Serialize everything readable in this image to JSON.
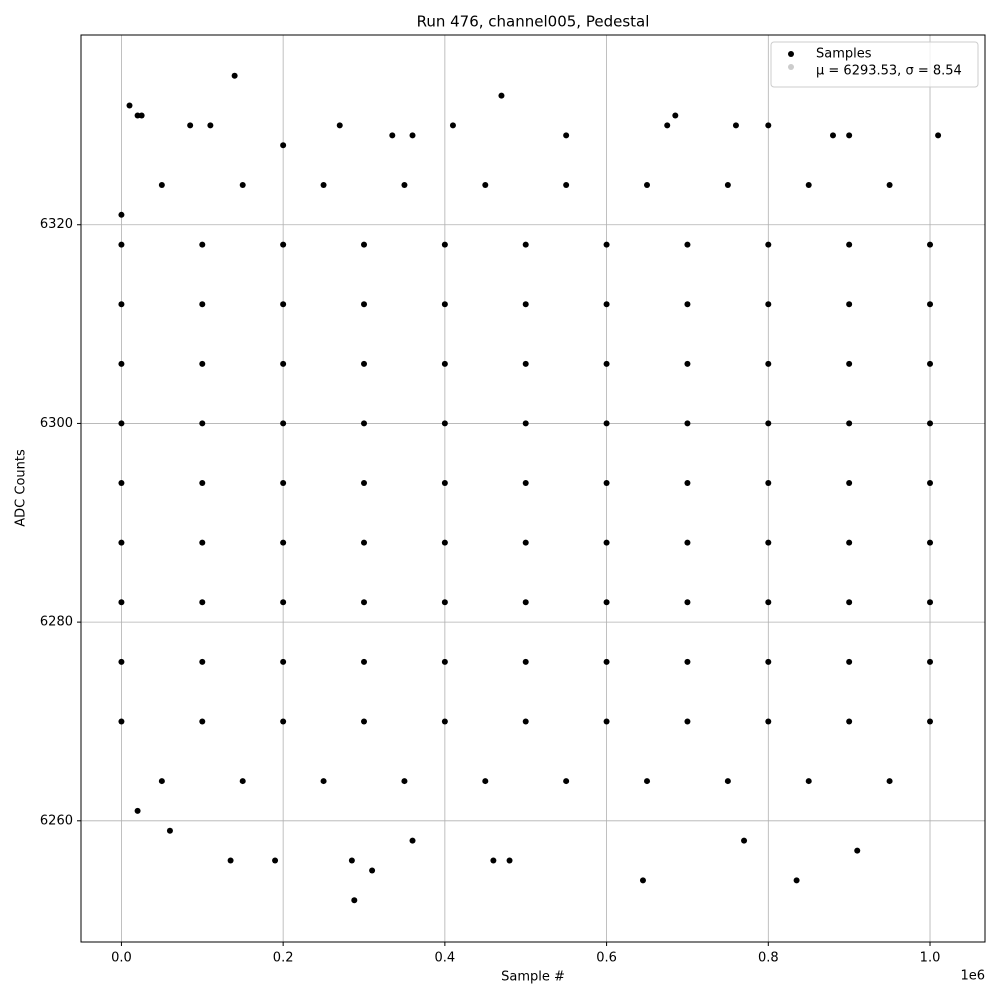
{
  "chart_data": {
    "type": "scatter",
    "title": "Run 476, channel005, Pedestal",
    "xlabel": "Sample #",
    "ylabel": "ADC Counts",
    "x_offset_label": "1e6",
    "xlim": [
      -50000,
      1068000
    ],
    "ylim": [
      6247.8,
      6339.1
    ],
    "xticks": [
      {
        "value": 0,
        "label": "0.0"
      },
      {
        "value": 200000,
        "label": "0.2"
      },
      {
        "value": 400000,
        "label": "0.4"
      },
      {
        "value": 600000,
        "label": "0.6"
      },
      {
        "value": 800000,
        "label": "0.8"
      },
      {
        "value": 1000000,
        "label": "1.0"
      }
    ],
    "yticks": [
      6260,
      6280,
      6300,
      6320
    ],
    "grid": true,
    "legend": "upper right",
    "series": [
      {
        "name": "Samples",
        "color": "#000000",
        "x": [
          0,
          100000,
          200000,
          300000,
          400000,
          500000,
          600000,
          700000,
          800000,
          900000,
          1000000,
          0,
          100000,
          200000,
          300000,
          400000,
          500000,
          600000,
          700000,
          800000,
          900000,
          1000000,
          0,
          100000,
          200000,
          300000,
          400000,
          500000,
          600000,
          700000,
          800000,
          900000,
          1000000,
          0,
          100000,
          200000,
          300000,
          400000,
          500000,
          600000,
          700000,
          800000,
          900000,
          1000000,
          0,
          100000,
          200000,
          300000,
          400000,
          500000,
          600000,
          700000,
          800000,
          900000,
          1000000,
          0,
          100000,
          200000,
          300000,
          400000,
          500000,
          600000,
          700000,
          800000,
          900000,
          1000000,
          0,
          100000,
          200000,
          300000,
          400000,
          500000,
          600000,
          700000,
          800000,
          900000,
          1000000,
          0,
          100000,
          200000,
          300000,
          400000,
          500000,
          600000,
          700000,
          800000,
          900000,
          1000000,
          0,
          100000,
          200000,
          300000,
          400000,
          500000,
          600000,
          700000,
          800000,
          900000,
          1000000,
          50000,
          150000,
          250000,
          350000,
          450000,
          550000,
          650000,
          750000,
          850000,
          950000,
          50000,
          150000,
          250000,
          350000,
          450000,
          550000,
          650000,
          750000,
          850000,
          950000,
          0,
          10000,
          20000,
          25000,
          85000,
          110000,
          140000,
          135000,
          200000,
          270000,
          288000,
          310000,
          335000,
          360000,
          410000,
          470000,
          460000,
          480000,
          550000,
          645000,
          675000,
          685000,
          760000,
          800000,
          835000,
          880000,
          900000,
          910000,
          1010000,
          20000,
          60000,
          190000,
          285000,
          770000,
          360000
        ],
        "values": [
          6270,
          6270,
          6270,
          6270,
          6270,
          6270,
          6270,
          6270,
          6270,
          6270,
          6270,
          6276,
          6276,
          6276,
          6276,
          6276,
          6276,
          6276,
          6276,
          6276,
          6276,
          6276,
          6282,
          6282,
          6282,
          6282,
          6282,
          6282,
          6282,
          6282,
          6282,
          6282,
          6282,
          6288,
          6288,
          6288,
          6288,
          6288,
          6288,
          6288,
          6288,
          6288,
          6288,
          6288,
          6294,
          6294,
          6294,
          6294,
          6294,
          6294,
          6294,
          6294,
          6294,
          6294,
          6294,
          6300,
          6300,
          6300,
          6300,
          6300,
          6300,
          6300,
          6300,
          6300,
          6300,
          6300,
          6306,
          6306,
          6306,
          6306,
          6306,
          6306,
          6306,
          6306,
          6306,
          6306,
          6306,
          6312,
          6312,
          6312,
          6312,
          6312,
          6312,
          6312,
          6312,
          6312,
          6312,
          6312,
          6318,
          6318,
          6318,
          6318,
          6318,
          6318,
          6318,
          6318,
          6318,
          6318,
          6318,
          6324,
          6324,
          6324,
          6324,
          6324,
          6324,
          6324,
          6324,
          6324,
          6324,
          6264,
          6264,
          6264,
          6264,
          6264,
          6264,
          6264,
          6264,
          6264,
          6264,
          6321,
          6332,
          6331,
          6331,
          6330,
          6330,
          6335,
          6256,
          6328,
          6330,
          6252,
          6255,
          6329,
          6329,
          6330,
          6333,
          6256,
          6256,
          6329,
          6254,
          6330,
          6331,
          6330,
          6330,
          6254,
          6329,
          6329,
          6257,
          6329,
          6261,
          6259,
          6256,
          6256,
          6258,
          6258
        ]
      },
      {
        "name": "μ = 6293.53, σ = 8.54",
        "color": "#cccccc",
        "x": [],
        "values": []
      }
    ]
  }
}
